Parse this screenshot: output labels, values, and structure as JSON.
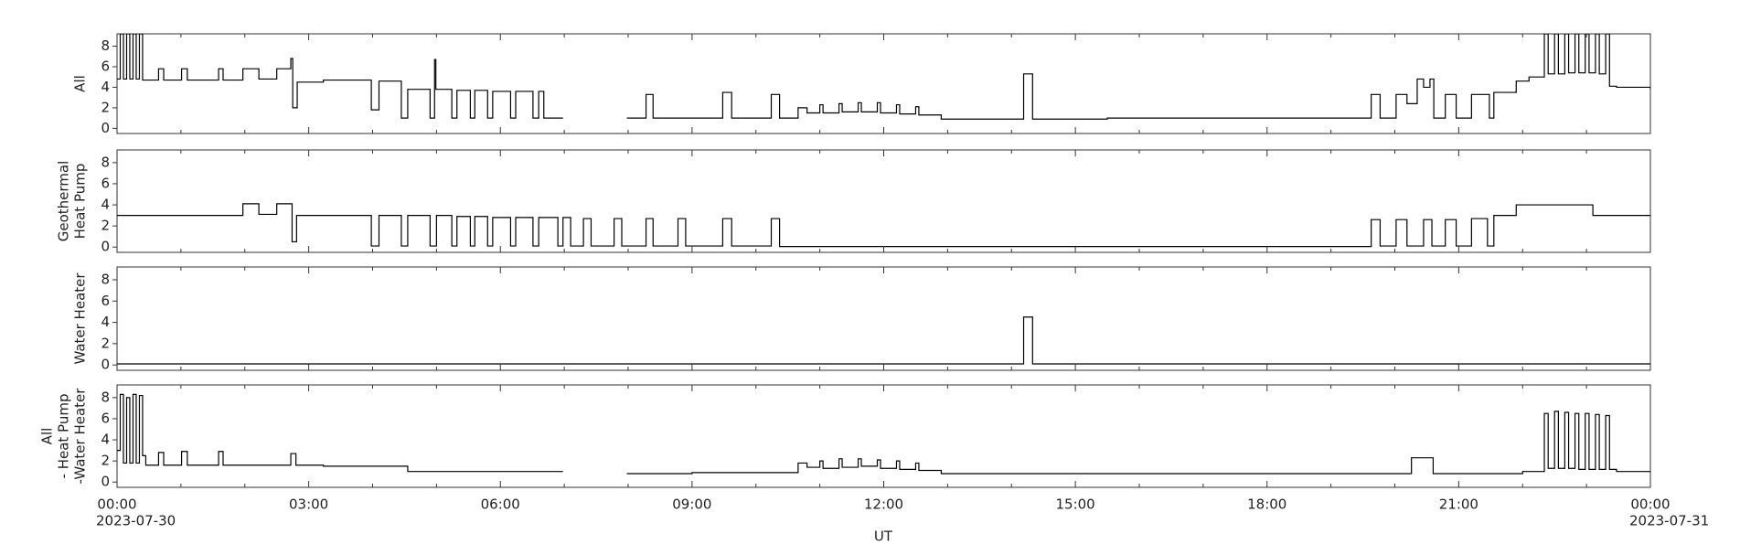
{
  "chart_data": {
    "type": "line",
    "drawstyle": "steps-post",
    "xlabel": "UT",
    "xlim": [
      0,
      24
    ],
    "xticks": [
      {
        "value": 0,
        "label": "00:00"
      },
      {
        "value": 3,
        "label": "03:00"
      },
      {
        "value": 6,
        "label": "06:00"
      },
      {
        "value": 9,
        "label": "09:00"
      },
      {
        "value": 12,
        "label": "12:00"
      },
      {
        "value": 15,
        "label": "15:00"
      },
      {
        "value": 18,
        "label": "18:00"
      },
      {
        "value": 21,
        "label": "21:00"
      },
      {
        "value": 24,
        "label": "00:00"
      }
    ],
    "minor_xticks": [
      1,
      2,
      4,
      5,
      7,
      8,
      10,
      11,
      13,
      14,
      16,
      17,
      19,
      20,
      22,
      23
    ],
    "x_dates": [
      {
        "value": 0,
        "label": "2023-07-30"
      },
      {
        "value": 24,
        "label": "2023-07-31"
      }
    ],
    "color": "#000000",
    "panels": [
      {
        "ylabel": [
          "All"
        ],
        "ylim": [
          -0.5,
          9.2
        ],
        "yticks": [
          0,
          2,
          4,
          6,
          8
        ],
        "x": [
          0,
          0.05,
          0.1,
          0.15,
          0.2,
          0.25,
          0.3,
          0.35,
          0.4,
          0.65,
          0.73,
          1.01,
          1.1,
          1.59,
          1.66,
          1.97,
          2.22,
          2.5,
          2.72,
          2.75,
          2.82,
          3.23,
          3.98,
          4.1,
          4.45,
          4.55,
          4.9,
          4.97,
          4.99,
          5.24,
          5.32,
          5.53,
          5.6,
          5.8,
          5.88,
          6.16,
          6.24,
          6.51,
          6.6,
          6.68,
          6.98,
          7.98,
          8.28,
          8.39,
          9.48,
          9.62,
          10.24,
          10.37,
          10.66,
          10.8,
          11.0,
          11.05,
          11.3,
          11.35,
          11.6,
          11.65,
          11.9,
          11.95,
          12.2,
          12.25,
          12.5,
          12.55,
          12.9,
          14.19,
          14.33,
          15.5,
          19.63,
          19.77,
          20.02,
          20.19,
          20.35,
          20.45,
          20.55,
          20.61,
          20.79,
          20.96,
          21.2,
          21.48,
          21.55,
          21.9,
          22.1,
          22.34,
          22.4,
          22.5,
          22.56,
          22.66,
          22.72,
          22.82,
          22.88,
          22.98,
          23.04,
          23.14,
          23.2,
          23.3,
          23.36,
          23.47,
          24
        ],
        "values": [
          4.8,
          9.2,
          4.8,
          9.2,
          4.8,
          9.2,
          4.8,
          9.2,
          4.7,
          5.8,
          4.7,
          5.8,
          4.7,
          5.8,
          4.7,
          5.8,
          4.8,
          5.8,
          6.8,
          2.0,
          4.5,
          4.7,
          1.8,
          4.6,
          1.0,
          3.8,
          1.0,
          6.7,
          3.8,
          1.0,
          3.7,
          1.0,
          3.7,
          1.0,
          3.6,
          1.0,
          3.6,
          1.0,
          3.6,
          1.0,
          null,
          1.0,
          3.3,
          1.0,
          3.5,
          1.0,
          3.3,
          1.0,
          2.0,
          1.5,
          2.3,
          1.5,
          2.4,
          1.6,
          2.5,
          1.6,
          2.5,
          1.5,
          2.3,
          1.4,
          2.1,
          1.3,
          0.9,
          5.3,
          0.9,
          1.0,
          3.3,
          1.0,
          3.3,
          2.4,
          4.8,
          4.0,
          4.8,
          1.0,
          3.3,
          1.0,
          3.3,
          1.0,
          3.5,
          4.6,
          5.0,
          9.2,
          5.3,
          9.2,
          5.3,
          9.2,
          5.4,
          9.2,
          5.4,
          9.2,
          5.4,
          9.2,
          5.3,
          9.2,
          4.1,
          4.0,
          3.8
        ]
      },
      {
        "ylabel": [
          "Geothermal",
          "Heat Pump"
        ],
        "ylim": [
          -0.5,
          9.2
        ],
        "yticks": [
          0,
          2,
          4,
          6,
          8
        ],
        "x": [
          0,
          1.97,
          2.22,
          2.5,
          2.74,
          2.81,
          3.98,
          4.1,
          4.45,
          4.55,
          4.9,
          5.0,
          5.24,
          5.32,
          5.53,
          5.6,
          5.8,
          5.88,
          6.16,
          6.24,
          6.51,
          6.6,
          6.9,
          6.98,
          7.1,
          7.3,
          7.42,
          7.78,
          7.9,
          8.28,
          8.39,
          8.78,
          8.9,
          9.48,
          9.62,
          10.24,
          10.37,
          19.63,
          19.77,
          20.02,
          20.19,
          20.45,
          20.58,
          20.79,
          20.96,
          21.2,
          21.45,
          21.55,
          21.9,
          23.1,
          24
        ],
        "values": [
          3.0,
          4.1,
          3.1,
          4.1,
          0.5,
          3.0,
          0.1,
          3.0,
          0.1,
          3.0,
          0.1,
          3.0,
          0.1,
          2.9,
          0.1,
          2.9,
          0.1,
          2.8,
          0.1,
          2.8,
          0.1,
          2.8,
          0.1,
          2.8,
          0.1,
          2.7,
          0.1,
          2.7,
          0.1,
          2.7,
          0.1,
          2.7,
          0.1,
          2.7,
          0.1,
          2.7,
          0.05,
          2.6,
          0.1,
          2.6,
          0.1,
          2.6,
          0.1,
          2.6,
          0.1,
          2.7,
          0.1,
          3.0,
          4.0,
          3.0,
          3.0
        ]
      },
      {
        "ylabel": [
          "Water Heater"
        ],
        "ylim": [
          -0.5,
          9.2
        ],
        "yticks": [
          0,
          2,
          4,
          6,
          8
        ],
        "x": [
          0,
          14.19,
          14.33,
          24
        ],
        "values": [
          0.1,
          4.5,
          0.1,
          0.1
        ]
      },
      {
        "ylabel": [
          "All",
          "- Heat Pump",
          "-Water Heater"
        ],
        "ylim": [
          -0.5,
          9.2
        ],
        "yticks": [
          0,
          2,
          4,
          6,
          8
        ],
        "x": [
          0,
          0.05,
          0.1,
          0.15,
          0.2,
          0.25,
          0.3,
          0.35,
          0.4,
          0.45,
          0.65,
          0.73,
          1.01,
          1.1,
          1.59,
          1.66,
          2.72,
          2.8,
          3.23,
          4.55,
          6.98,
          7.98,
          9.0,
          10.66,
          10.8,
          11.0,
          11.05,
          11.3,
          11.35,
          11.6,
          11.65,
          11.9,
          11.95,
          12.2,
          12.25,
          12.5,
          12.55,
          12.9,
          20.26,
          20.6,
          22.0,
          22.34,
          22.4,
          22.5,
          22.56,
          22.66,
          22.72,
          22.82,
          22.88,
          22.98,
          23.04,
          23.14,
          23.2,
          23.3,
          23.36,
          23.47,
          24
        ],
        "values": [
          3.0,
          8.3,
          1.8,
          8.0,
          1.8,
          8.3,
          1.8,
          8.2,
          2.5,
          1.6,
          2.8,
          1.6,
          2.9,
          1.6,
          2.9,
          1.6,
          2.7,
          1.6,
          1.5,
          1.0,
          null,
          0.8,
          0.9,
          1.8,
          1.4,
          2.0,
          1.3,
          2.2,
          1.4,
          2.2,
          1.5,
          2.1,
          1.3,
          2.0,
          1.2,
          1.8,
          1.1,
          0.8,
          2.3,
          0.8,
          1.0,
          6.5,
          1.3,
          6.7,
          1.3,
          6.6,
          1.3,
          6.5,
          1.2,
          6.5,
          1.2,
          6.4,
          1.2,
          6.3,
          1.2,
          1.0,
          0.9
        ]
      }
    ]
  }
}
